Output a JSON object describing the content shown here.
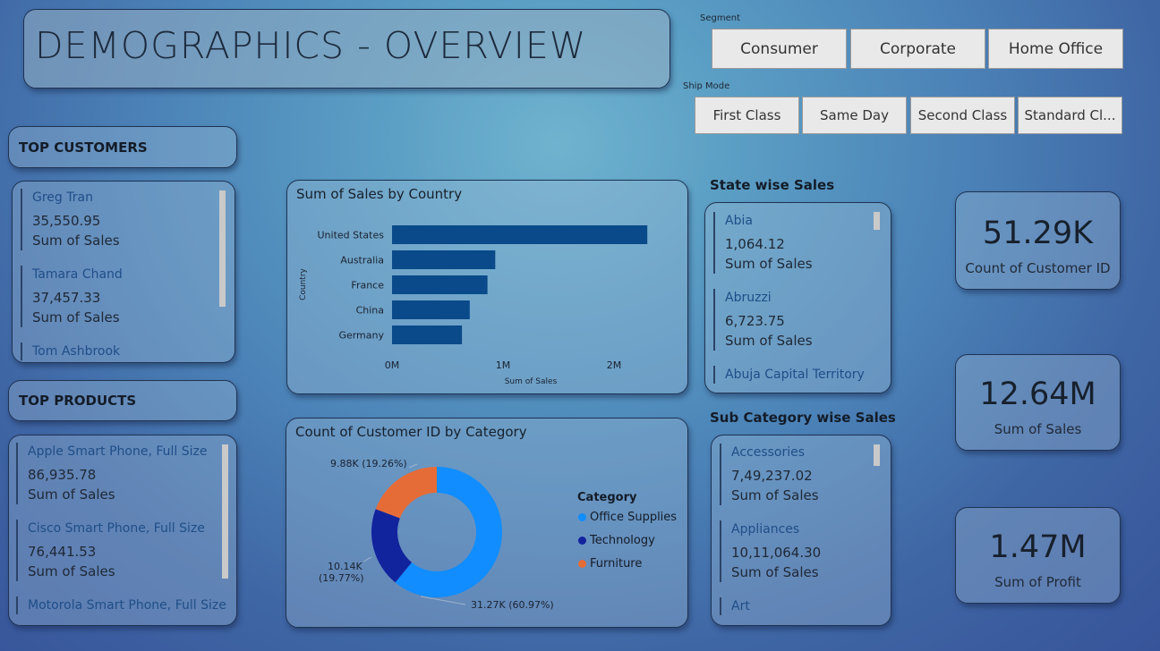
{
  "header": {
    "title": "DEMOGRAPHICS - OVERVIEW"
  },
  "segment": {
    "label": "Segment",
    "options": [
      "Consumer",
      "Corporate",
      "Home Office"
    ]
  },
  "ship_mode": {
    "label": "Ship Mode",
    "options": [
      "First Class",
      "Same Day",
      "Second Class",
      "Standard Cl..."
    ]
  },
  "top_customers": {
    "heading": "TOP CUSTOMERS",
    "items": [
      {
        "name": "Greg Tran",
        "value": "35,550.95",
        "label": "Sum of Sales"
      },
      {
        "name": "Tamara Chand",
        "value": "37,457.33",
        "label": "Sum of Sales"
      },
      {
        "name": "Tom Ashbrook"
      }
    ]
  },
  "top_products": {
    "heading": "TOP PRODUCTS",
    "items": [
      {
        "name": "Apple Smart Phone, Full Size",
        "value": "86,935.78",
        "label": "Sum of Sales"
      },
      {
        "name": "Cisco Smart Phone, Full Size",
        "value": "76,441.53",
        "label": "Sum of Sales"
      },
      {
        "name": "Motorola Smart Phone, Full Size"
      }
    ]
  },
  "sales_by_country": {
    "title": "Sum of Sales by Country",
    "chart_data": {
      "type": "bar",
      "orientation": "horizontal",
      "title": "Sum of Sales by Country",
      "categories": [
        "United States",
        "Australia",
        "France",
        "China",
        "Germany"
      ],
      "values": [
        2300000,
        930000,
        860000,
        700000,
        630000
      ],
      "xlabel": "Sum of Sales",
      "ylabel": "Country",
      "xlim": [
        0,
        2500000
      ],
      "xticks": [
        "0M",
        "1M",
        "2M"
      ],
      "xtick_values": [
        0,
        1000000,
        2000000
      ],
      "color": "#0a4a8a"
    }
  },
  "customers_by_category": {
    "title": "Count of Customer ID by Category",
    "chart_data": {
      "type": "pie",
      "donut": true,
      "title": "Count of Customer ID by Category",
      "legend_title": "Category",
      "legend_position": "right",
      "categories": [
        "Office Supplies",
        "Technology",
        "Furniture"
      ],
      "values": [
        31270,
        10140,
        9880
      ],
      "percents": [
        60.97,
        19.77,
        19.26
      ],
      "labels": [
        "31.27K (60.97%)",
        "10.14K (19.77%)",
        "9.88K (19.26%)"
      ],
      "colors": [
        "#118dff",
        "#12239e",
        "#e66c37"
      ]
    }
  },
  "state_sales": {
    "heading": "State wise Sales",
    "items": [
      {
        "name": "Abia",
        "value": "1,064.12",
        "label": "Sum of Sales"
      },
      {
        "name": "Abruzzi",
        "value": "6,723.75",
        "label": "Sum of Sales"
      },
      {
        "name": "Abuja Capital Territory"
      }
    ]
  },
  "subcategory_sales": {
    "heading": "Sub Category wise Sales",
    "items": [
      {
        "name": "Accessories",
        "value": "7,49,237.02",
        "label": "Sum of Sales"
      },
      {
        "name": "Appliances",
        "value": "10,11,064.30",
        "label": "Sum of Sales"
      },
      {
        "name": "Art"
      }
    ]
  },
  "kpis": [
    {
      "value": "51.29K",
      "label": "Count of Customer ID"
    },
    {
      "value": "12.64M",
      "label": "Sum of Sales"
    },
    {
      "value": "1.47M",
      "label": "Sum of Profit"
    }
  ]
}
